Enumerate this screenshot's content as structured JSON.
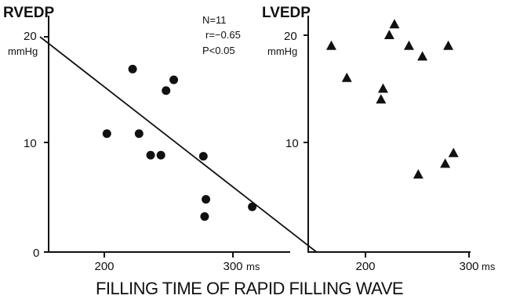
{
  "chart_data": {
    "xlabel": "FILLING TIME OF RAPID FILLING WAVE",
    "panels": [
      {
        "type": "scatter",
        "title": "RVEDP",
        "y_unit": "mmHg",
        "x_unit": "ms",
        "xlim": [
          150,
          370
        ],
        "ylim": [
          0,
          22
        ],
        "x_ticks": [
          200,
          300
        ],
        "x_tick_labels": [
          "200",
          "300"
        ],
        "y_ticks": [
          0,
          10,
          20
        ],
        "y_tick_labels": [
          "0",
          "10",
          "20"
        ],
        "stats": [
          "N=11",
          "r=−0.65",
          "P<0.05"
        ],
        "marker": "circle",
        "regression": {
          "x": [
            150,
            365
          ],
          "y": [
            20,
            0
          ]
        },
        "points": [
          {
            "x": 202,
            "y": 11
          },
          {
            "x": 222,
            "y": 17
          },
          {
            "x": 227,
            "y": 11
          },
          {
            "x": 236,
            "y": 9
          },
          {
            "x": 244,
            "y": 9
          },
          {
            "x": 248,
            "y": 15
          },
          {
            "x": 254,
            "y": 16
          },
          {
            "x": 277,
            "y": 8.9
          },
          {
            "x": 279,
            "y": 4.9
          },
          {
            "x": 278,
            "y": 3.3
          },
          {
            "x": 315,
            "y": 4.2
          }
        ]
      },
      {
        "type": "scatter",
        "title": "LVEDP",
        "y_unit": "mmHg",
        "x_unit": "ms",
        "xlim": [
          150,
          300
        ],
        "ylim": [
          0,
          22
        ],
        "x_ticks": [
          200,
          300
        ],
        "x_tick_labels": [
          "200",
          "300"
        ],
        "y_ticks": [
          10,
          20
        ],
        "y_tick_labels": [
          "10",
          "20"
        ],
        "marker": "triangle",
        "points": [
          {
            "x": 167,
            "y": 19
          },
          {
            "x": 182,
            "y": 16
          },
          {
            "x": 215,
            "y": 14
          },
          {
            "x": 217,
            "y": 15
          },
          {
            "x": 223,
            "y": 20
          },
          {
            "x": 228,
            "y": 21
          },
          {
            "x": 242,
            "y": 19
          },
          {
            "x": 251,
            "y": 7
          },
          {
            "x": 255,
            "y": 18
          },
          {
            "x": 277,
            "y": 8
          },
          {
            "x": 280,
            "y": 19
          },
          {
            "x": 285,
            "y": 9
          }
        ]
      }
    ]
  }
}
